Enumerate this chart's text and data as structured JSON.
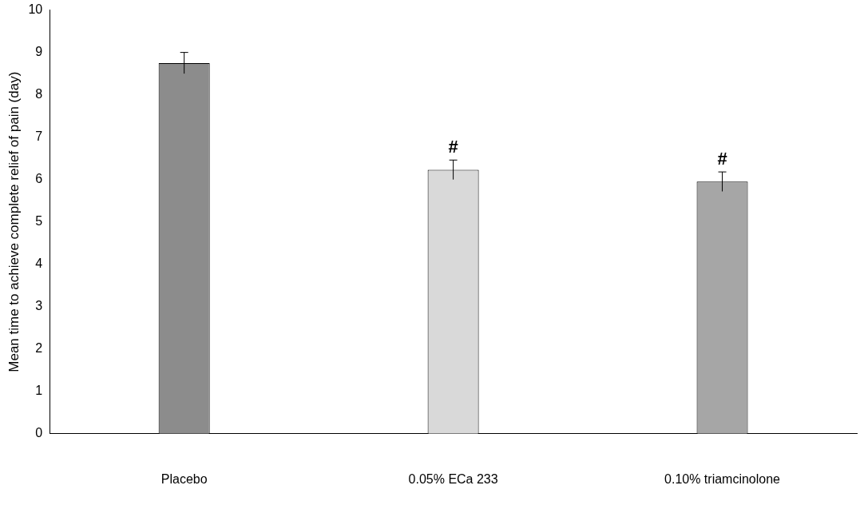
{
  "chart_data": {
    "type": "bar",
    "ylabel": "Mean time to achieve complete relief of pain (day)",
    "categories": [
      "Placebo",
      "0.05% ECa 233",
      "0.10% triamcinolone"
    ],
    "values": [
      8.75,
      6.23,
      5.95
    ],
    "errors": [
      0.25,
      0.23,
      0.23
    ],
    "colors": [
      "#8c8c8c",
      "#d9d9d9",
      "#a6a6a6"
    ],
    "ylim": [
      0,
      10
    ],
    "yticks": [
      0,
      1,
      2,
      3,
      4,
      5,
      6,
      7,
      8,
      9,
      10
    ],
    "grid": false,
    "legend": false,
    "annotations": [
      {
        "text": "#",
        "x": "0.05% ECa 233",
        "y": 6.46
      },
      {
        "text": "#",
        "x": "0.10% triamcinolone",
        "y": 6.18
      }
    ]
  }
}
